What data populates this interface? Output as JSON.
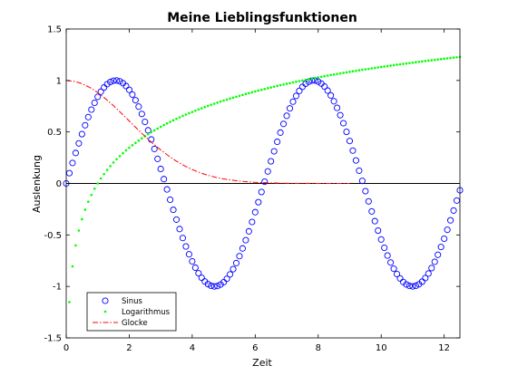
{
  "chart_data": {
    "type": "line",
    "title": "Meine Lieblingsfunktionen",
    "xlabel": "Zeit",
    "ylabel": "Auslenkung",
    "xlim": [
      0,
      12.5
    ],
    "ylim": [
      -1.5,
      1.5
    ],
    "x_ticks": [
      0,
      2,
      4,
      6,
      8,
      10,
      12
    ],
    "x_tick_labels": [
      "0",
      "2",
      "4",
      "6",
      "8",
      "10",
      "12"
    ],
    "y_ticks": [
      -1.5,
      -1,
      -0.5,
      0,
      0.5,
      1,
      1.5
    ],
    "y_tick_labels": [
      "-1.5",
      "-1",
      "-0.5",
      "0",
      "0.5",
      "1",
      "1.5"
    ],
    "grid": false,
    "legend_position": "bottom-left",
    "zero_line": true,
    "series": [
      {
        "name": "Sinus",
        "color": "#0000ff",
        "style": "marker-circle",
        "x": [
          0,
          0.1,
          0.2,
          0.3,
          0.4,
          0.5,
          0.6,
          0.7,
          0.8,
          0.9,
          1,
          1.1,
          1.2,
          1.3,
          1.4,
          1.5,
          1.6,
          1.7,
          1.8,
          1.9,
          2,
          2.1,
          2.2,
          2.3,
          2.4,
          2.5,
          2.6,
          2.7,
          2.8,
          2.9,
          3,
          3.1,
          3.2,
          3.3,
          3.4,
          3.5,
          3.6,
          3.7,
          3.8,
          3.9,
          4,
          4.1,
          4.2,
          4.3,
          4.4,
          4.5,
          4.6,
          4.7,
          4.8,
          4.9,
          5,
          5.1,
          5.2,
          5.3,
          5.4,
          5.5,
          5.6,
          5.7,
          5.8,
          5.9,
          6,
          6.1,
          6.2,
          6.3,
          6.4,
          6.5,
          6.6,
          6.7,
          6.8,
          6.9,
          7,
          7.1,
          7.2,
          7.3,
          7.4,
          7.5,
          7.6,
          7.7,
          7.8,
          7.9,
          8,
          8.1,
          8.2,
          8.3,
          8.4,
          8.5,
          8.6,
          8.7,
          8.8,
          8.9,
          9,
          9.1,
          9.2,
          9.3,
          9.4,
          9.5,
          9.6,
          9.7,
          9.8,
          9.9,
          10,
          10.1,
          10.2,
          10.3,
          10.4,
          10.5,
          10.6,
          10.7,
          10.8,
          10.9,
          11,
          11.1,
          11.2,
          11.3,
          11.4,
          11.5,
          11.6,
          11.7,
          11.8,
          11.9,
          12,
          12.1,
          12.2,
          12.3,
          12.4,
          12.5
        ],
        "y": [
          0,
          0.1,
          0.199,
          0.296,
          0.389,
          0.479,
          0.565,
          0.644,
          0.717,
          0.783,
          0.841,
          0.891,
          0.932,
          0.964,
          0.985,
          0.997,
          1,
          0.992,
          0.974,
          0.946,
          0.909,
          0.863,
          0.808,
          0.746,
          0.675,
          0.598,
          0.516,
          0.427,
          0.335,
          0.239,
          0.141,
          0.042,
          -0.058,
          -0.158,
          -0.256,
          -0.351,
          -0.443,
          -0.53,
          -0.612,
          -0.688,
          -0.757,
          -0.818,
          -0.872,
          -0.916,
          -0.952,
          -0.978,
          -0.994,
          -1,
          -0.996,
          -0.982,
          -0.959,
          -0.926,
          -0.883,
          -0.832,
          -0.773,
          -0.706,
          -0.631,
          -0.551,
          -0.465,
          -0.374,
          -0.279,
          -0.182,
          -0.083,
          0.017,
          0.117,
          0.215,
          0.312,
          0.405,
          0.494,
          0.578,
          0.657,
          0.729,
          0.794,
          0.85,
          0.899,
          0.938,
          0.968,
          0.988,
          0.999,
          1,
          0.989,
          0.97,
          0.941,
          0.902,
          0.855,
          0.798,
          0.734,
          0.663,
          0.585,
          0.501,
          0.412,
          0.319,
          0.223,
          0.124,
          0.025,
          -0.075,
          -0.174,
          -0.272,
          -0.366,
          -0.458,
          -0.544,
          -0.625,
          -0.7,
          -0.768,
          -0.828,
          -0.88,
          -0.923,
          -0.957,
          -0.981,
          -0.995,
          -1,
          -0.994,
          -0.979,
          -0.954,
          -0.919,
          -0.875,
          -0.822,
          -0.761,
          -0.693,
          -0.617,
          -0.537,
          -0.45,
          -0.358,
          -0.263,
          -0.166,
          -0.066
        ]
      },
      {
        "name": "Logarithmus",
        "color": "#00ff00",
        "style": "marker-dot",
        "x": [
          0.1,
          0.2,
          0.3,
          0.4,
          0.5,
          0.6,
          0.7,
          0.8,
          0.9,
          1,
          1.1,
          1.2,
          1.3,
          1.4,
          1.5,
          1.6,
          1.7,
          1.8,
          1.9,
          2,
          2.1,
          2.2,
          2.3,
          2.4,
          2.5,
          2.6,
          2.7,
          2.8,
          2.9,
          3,
          3.1,
          3.2,
          3.3,
          3.4,
          3.5,
          3.6,
          3.7,
          3.8,
          3.9,
          4,
          4.1,
          4.2,
          4.3,
          4.4,
          4.5,
          4.6,
          4.7,
          4.8,
          4.9,
          5,
          5.1,
          5.2,
          5.3,
          5.4,
          5.5,
          5.6,
          5.7,
          5.8,
          5.9,
          6,
          6.1,
          6.2,
          6.3,
          6.4,
          6.5,
          6.6,
          6.7,
          6.8,
          6.9,
          7,
          7.1,
          7.2,
          7.3,
          7.4,
          7.5,
          7.6,
          7.7,
          7.8,
          7.9,
          8,
          8.1,
          8.2,
          8.3,
          8.4,
          8.5,
          8.6,
          8.7,
          8.8,
          8.9,
          9,
          9.1,
          9.2,
          9.3,
          9.4,
          9.5,
          9.6,
          9.7,
          9.8,
          9.9,
          10,
          10.1,
          10.2,
          10.3,
          10.4,
          10.5,
          10.6,
          10.7,
          10.8,
          10.9,
          11,
          11.1,
          11.2,
          11.3,
          11.4,
          11.5,
          11.6,
          11.7,
          11.8,
          11.9,
          12,
          12.1,
          12.2,
          12.3,
          12.4,
          12.5
        ],
        "y": [
          -1.152,
          -0.805,
          -0.602,
          -0.458,
          -0.347,
          -0.255,
          -0.178,
          -0.111,
          -0.051,
          0,
          0.048,
          0.091,
          0.131,
          0.168,
          0.203,
          0.235,
          0.265,
          0.294,
          0.321,
          0.347,
          0.371,
          0.394,
          0.416,
          0.438,
          0.458,
          0.478,
          0.497,
          0.515,
          0.533,
          0.55,
          0.567,
          0.583,
          0.598,
          0.613,
          0.628,
          0.642,
          0.656,
          0.669,
          0.682,
          0.694,
          0.707,
          0.719,
          0.73,
          0.742,
          0.753,
          0.764,
          0.774,
          0.785,
          0.795,
          0.805,
          0.814,
          0.824,
          0.833,
          0.842,
          0.851,
          0.86,
          0.869,
          0.877,
          0.885,
          0.894,
          0.902,
          0.909,
          0.917,
          0.925,
          0.932,
          0.94,
          0.947,
          0.954,
          0.961,
          0.968,
          0.974,
          0.981,
          0.988,
          0.994,
          1,
          1.006,
          1.012,
          1.018,
          1.024,
          1.03,
          1.036,
          1.042,
          1.047,
          1.053,
          1.058,
          1.063,
          1.069,
          1.074,
          1.079,
          1.084,
          1.089,
          1.094,
          1.099,
          1.104,
          1.108,
          1.113,
          1.118,
          1.122,
          1.127,
          1.131,
          1.136,
          1.14,
          1.144,
          1.149,
          1.153,
          1.157,
          1.161,
          1.165,
          1.169,
          1.173,
          1.177,
          1.181,
          1.185,
          1.189,
          1.193,
          1.197,
          1.2,
          1.204,
          1.208,
          1.211,
          1.215,
          1.218,
          1.222,
          1.225,
          1.229
        ]
      },
      {
        "name": "Glocke",
        "color": "#ff0000",
        "style": "dash-dot",
        "x": [
          0,
          0.25,
          0.5,
          0.75,
          1,
          1.25,
          1.5,
          1.75,
          2,
          2.25,
          2.5,
          2.75,
          3,
          3.25,
          3.5,
          3.75,
          4,
          4.25,
          4.5,
          4.75,
          5,
          5.25,
          5.5,
          5.75,
          6,
          6.25,
          6.5,
          6.75,
          7,
          7.25,
          7.5,
          7.75,
          8,
          8.25,
          8.5,
          8.75,
          9
        ],
        "y": [
          1,
          0.992,
          0.969,
          0.932,
          0.882,
          0.822,
          0.755,
          0.682,
          0.607,
          0.531,
          0.458,
          0.388,
          0.325,
          0.267,
          0.216,
          0.172,
          0.135,
          0.104,
          0.079,
          0.059,
          0.044,
          0.032,
          0.023,
          0.016,
          0.011,
          0.008,
          0.005,
          0.003,
          0.002,
          0.001,
          0.001,
          0.001,
          0,
          0,
          0,
          0,
          0
        ]
      }
    ]
  }
}
